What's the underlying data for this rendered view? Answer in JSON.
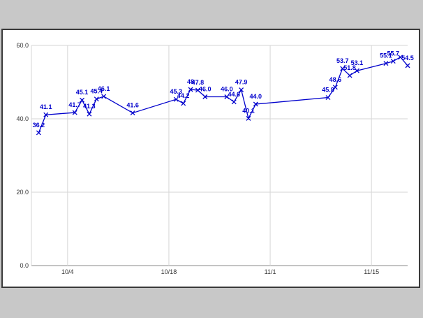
{
  "chart_data": {
    "type": "line",
    "title": "",
    "xlabel": "",
    "ylabel": "",
    "ylim": [
      0,
      60
    ],
    "yticks": [
      "0.0",
      "20.0",
      "40.0",
      "60.0"
    ],
    "xticks": [
      {
        "label": "10/4",
        "date": "2023-10-04"
      },
      {
        "label": "10/18",
        "date": "2023-10-18"
      },
      {
        "label": "11/1",
        "date": "2023-11-01"
      },
      {
        "label": "11/15",
        "date": "2023-11-15"
      }
    ],
    "xlim": [
      "2023-09-29",
      "2023-11-20"
    ],
    "grid": true,
    "legend": "none",
    "series": [
      {
        "color": "#0000cc",
        "marker": "x",
        "points": [
          {
            "x": "2023-09-30",
            "y": 36.2,
            "label": "36.2"
          },
          {
            "x": "2023-10-01",
            "y": 41.1,
            "label": "41.1"
          },
          {
            "x": "2023-10-05",
            "y": 41.7,
            "label": "41.7"
          },
          {
            "x": "2023-10-06",
            "y": 45.1,
            "label": "45.1"
          },
          {
            "x": "2023-10-07",
            "y": 41.3,
            "label": "41.3"
          },
          {
            "x": "2023-10-08",
            "y": 45.4,
            "label": "45.4"
          },
          {
            "x": "2023-10-09",
            "y": 46.1,
            "label": "46.1"
          },
          {
            "x": "2023-10-13",
            "y": 41.6,
            "label": "41.6"
          },
          {
            "x": "2023-10-19",
            "y": 45.3,
            "label": "45.3"
          },
          {
            "x": "2023-10-20",
            "y": 44.2,
            "label": "44.2"
          },
          {
            "x": "2023-10-21",
            "y": 48.0,
            "label": "48"
          },
          {
            "x": "2023-10-22",
            "y": 47.8,
            "label": "47.8"
          },
          {
            "x": "2023-10-23",
            "y": 46.0,
            "label": "46.0"
          },
          {
            "x": "2023-10-26",
            "y": 46.0,
            "label": "46.0"
          },
          {
            "x": "2023-10-27",
            "y": 44.6,
            "label": "44.6"
          },
          {
            "x": "2023-10-28",
            "y": 47.9,
            "label": "47.9"
          },
          {
            "x": "2023-10-29",
            "y": 40.1,
            "label": "40.1"
          },
          {
            "x": "2023-10-30",
            "y": 44.0,
            "label": "44.0"
          },
          {
            "x": "2023-11-09",
            "y": 45.8,
            "label": "45.8"
          },
          {
            "x": "2023-11-10",
            "y": 48.6,
            "label": "48.6"
          },
          {
            "x": "2023-11-11",
            "y": 53.7,
            "label": "53.7"
          },
          {
            "x": "2023-11-12",
            "y": 51.8,
            "label": "51.8"
          },
          {
            "x": "2023-11-13",
            "y": 53.1,
            "label": "53.1"
          },
          {
            "x": "2023-11-17",
            "y": 55.1,
            "label": "55.1"
          },
          {
            "x": "2023-11-18",
            "y": 55.7,
            "label": "55.7"
          },
          {
            "x": "2023-11-19",
            "y": 56.8,
            "label": ""
          },
          {
            "x": "2023-11-20",
            "y": 54.5,
            "label": "54.5"
          }
        ]
      }
    ]
  }
}
